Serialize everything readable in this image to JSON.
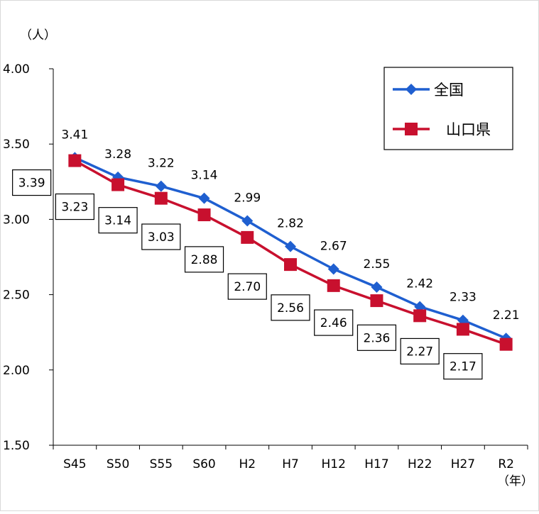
{
  "chart_data": {
    "type": "line",
    "y_unit_label": "（人）",
    "x_unit_label": "（年）",
    "categories": [
      "S45",
      "S50",
      "S55",
      "S60",
      "H2",
      "H7",
      "H12",
      "H17",
      "H22",
      "H27",
      "R2"
    ],
    "series": [
      {
        "name": "全国",
        "color": "#1f5fd0",
        "marker": "diamond",
        "values": [
          3.41,
          3.28,
          3.22,
          3.14,
          2.99,
          2.82,
          2.67,
          2.55,
          2.42,
          2.33,
          2.21
        ],
        "labels": [
          "3.41",
          "3.28",
          "3.22",
          "3.14",
          "2.99",
          "2.82",
          "2.67",
          "2.55",
          "2.42",
          "2.33",
          "2.21"
        ],
        "label_position": "above"
      },
      {
        "name": "山口県",
        "color": "#c8102e",
        "marker": "square",
        "values": [
          3.39,
          3.23,
          3.14,
          3.03,
          2.88,
          2.7,
          2.56,
          2.46,
          2.36,
          2.27,
          2.17
        ],
        "labels": [
          "3.39",
          "3.23",
          "3.14",
          "3.03",
          "2.88",
          "2.70",
          "2.56",
          "2.46",
          "2.36",
          "2.27",
          "2.17"
        ],
        "label_position": "below-boxed"
      }
    ],
    "ylim": [
      1.5,
      4.0
    ],
    "y_ticks": [
      "1.50",
      "2.00",
      "2.50",
      "3.00",
      "3.50",
      "4.00"
    ],
    "grid": false,
    "legend_position": "top-right"
  }
}
